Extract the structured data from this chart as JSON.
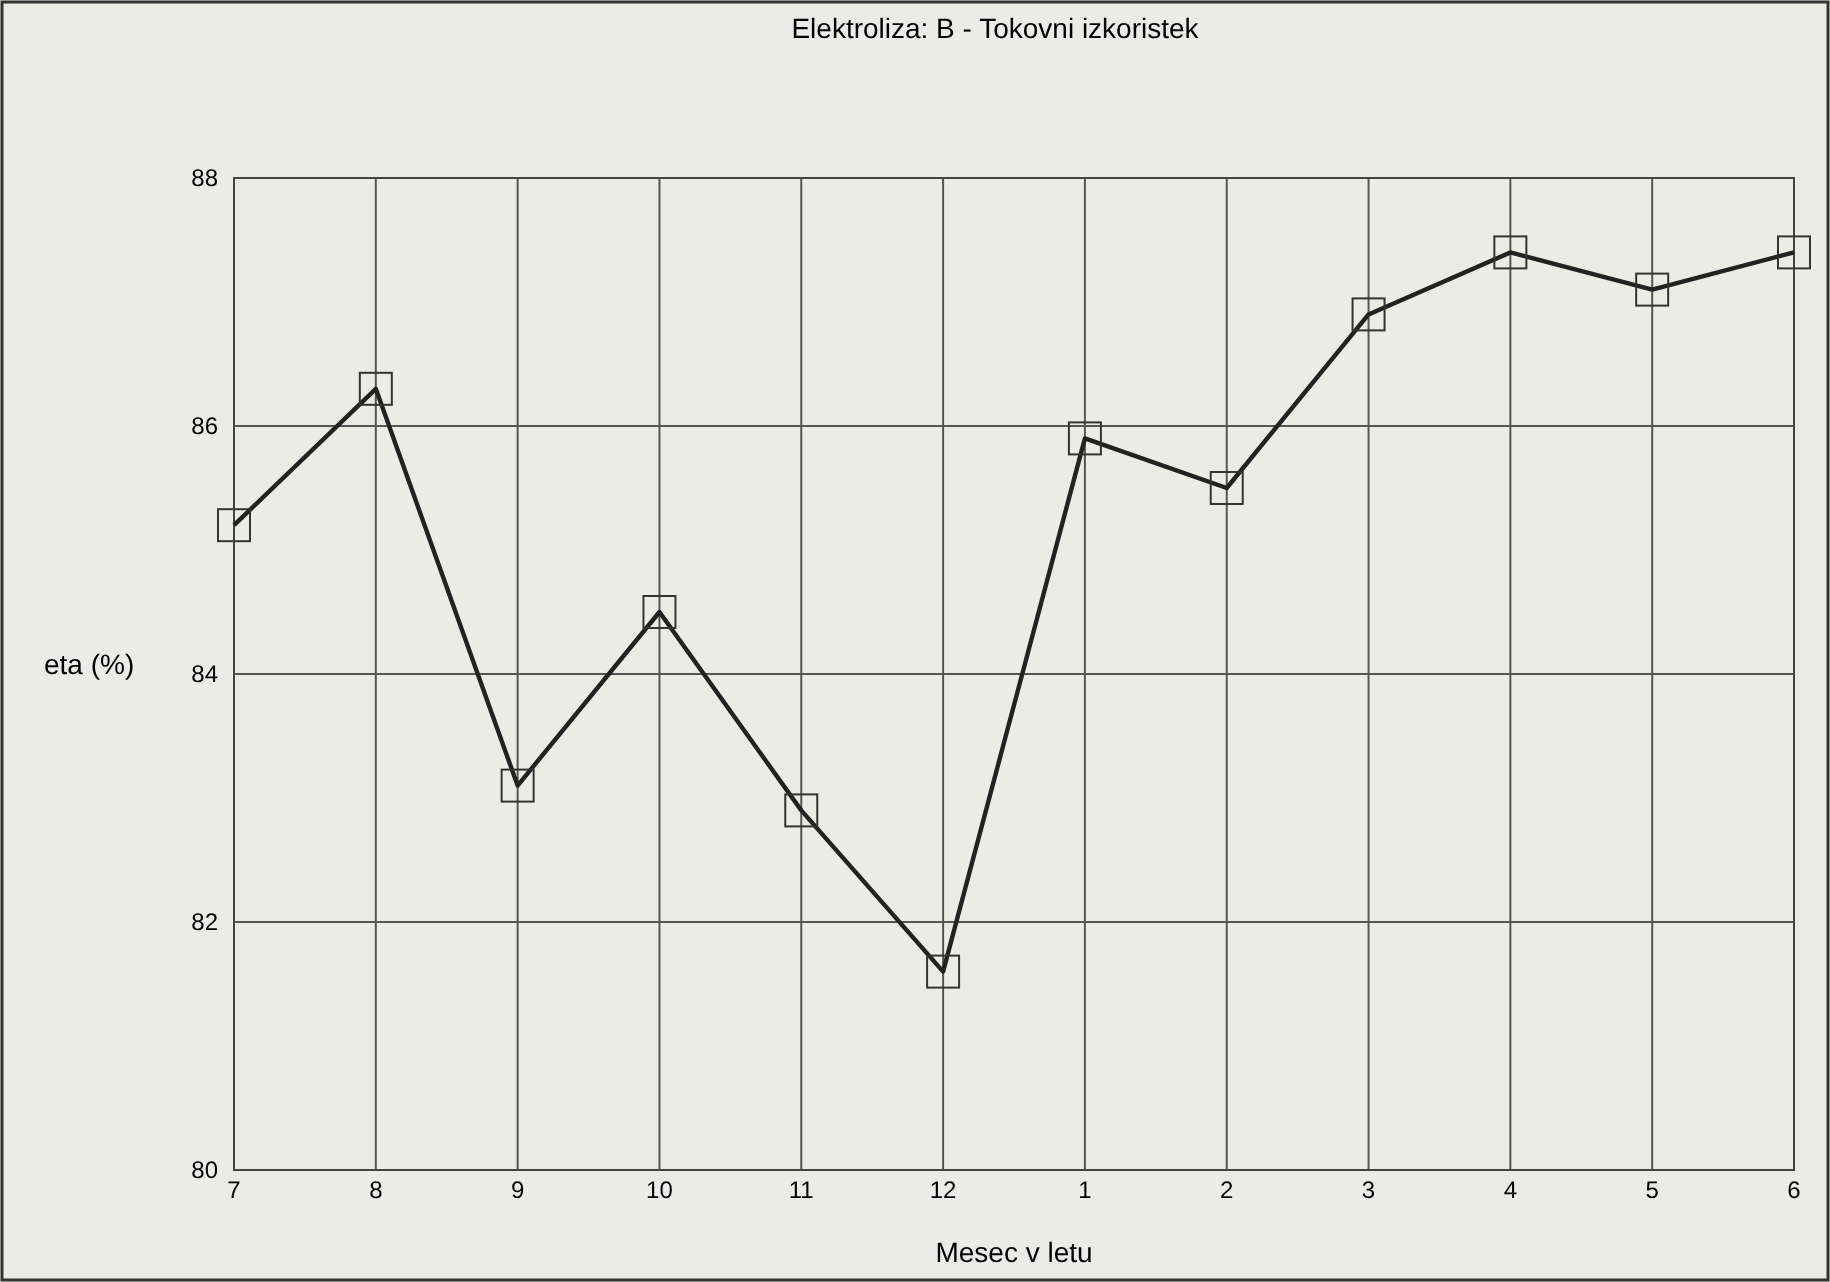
{
  "chart_data": {
    "type": "line",
    "title": "Elektroliza: B - Tokovni izkoristek",
    "xlabel": "Mesec v letu",
    "ylabel": "eta (%)",
    "categories": [
      "7",
      "8",
      "9",
      "10",
      "11",
      "12",
      "1",
      "2",
      "3",
      "4",
      "5",
      "6"
    ],
    "series": [
      {
        "color": "#222222",
        "values": [
          85.2,
          86.3,
          83.1,
          84.5,
          82.9,
          81.6,
          85.9,
          85.5,
          86.9,
          87.4,
          87.1,
          87.4
        ]
      }
    ],
    "ylim": [
      80,
      88
    ],
    "yticks": [
      80,
      82,
      84,
      86,
      88
    ],
    "grid": true,
    "marker": "square",
    "line_style": "solid"
  }
}
